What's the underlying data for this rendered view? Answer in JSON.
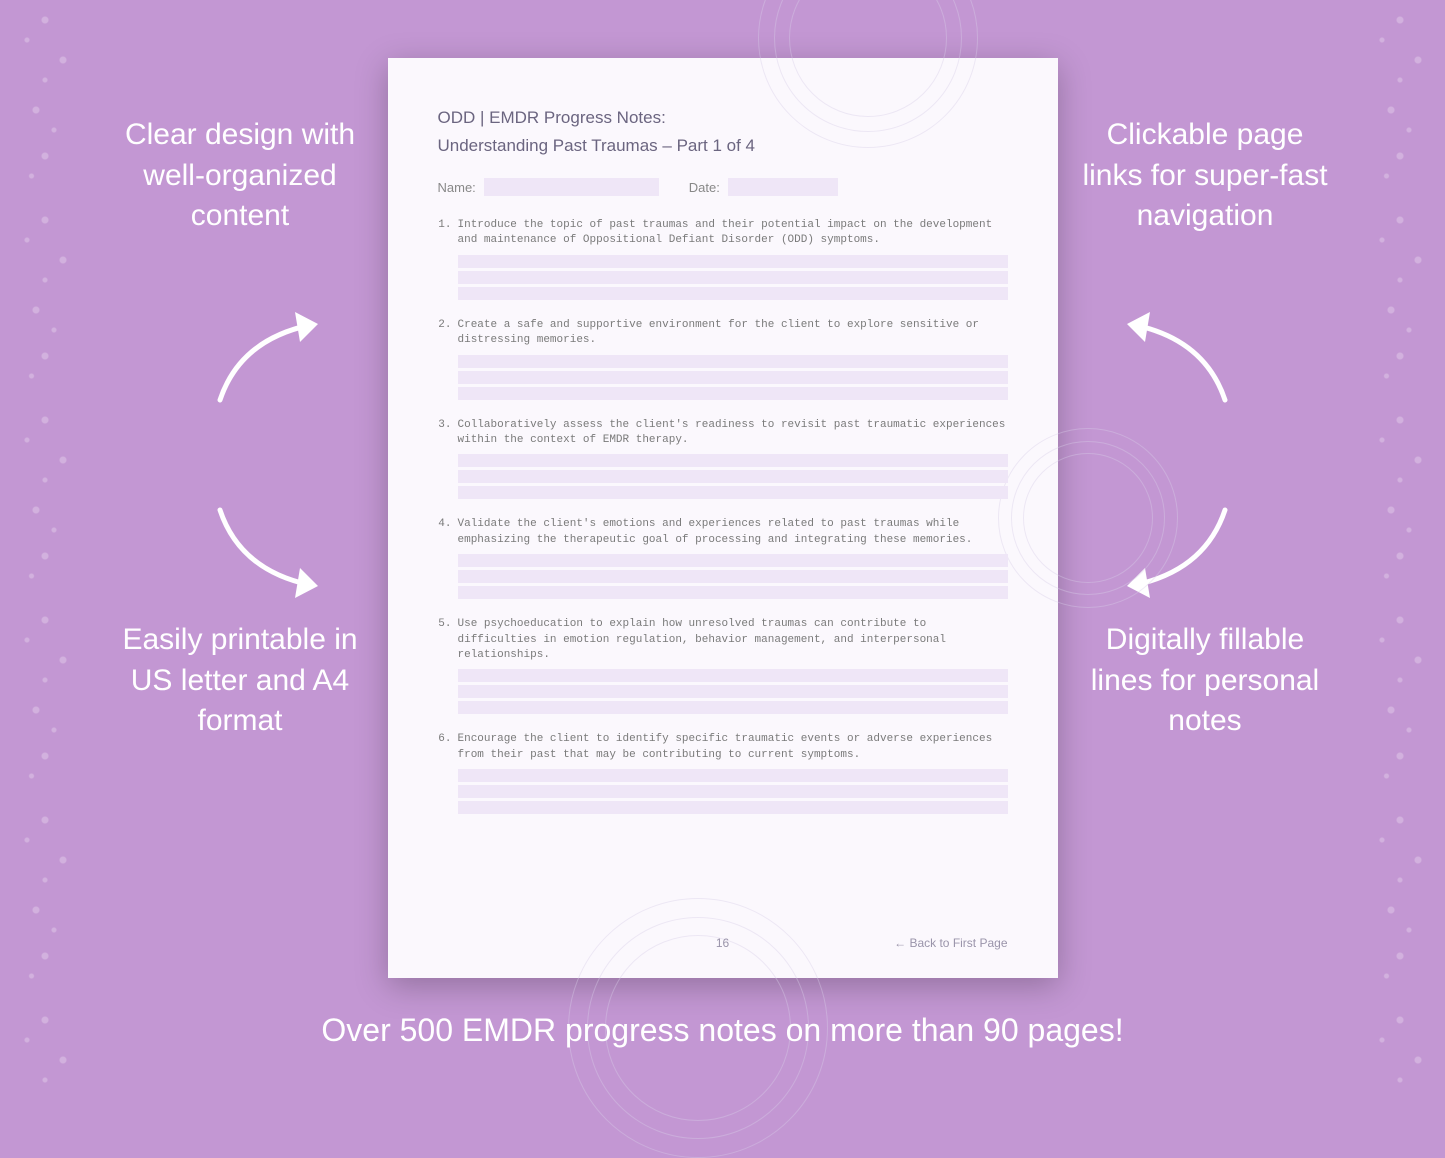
{
  "colors": {
    "background": "#c397d3",
    "page_bg": "#fbf8fd",
    "fill_line": "#efe6f7",
    "callout_text": "#ffffff",
    "doc_heading": "#6b6580",
    "item_text": "#7a7a7a",
    "footer_text": "#9a94aa",
    "mandala": "#d8cee8"
  },
  "typography": {
    "callout_fontsize": 30,
    "footer_fontsize": 32,
    "doc_title_fontsize": 17,
    "item_fontsize": 11,
    "item_font": "Courier New"
  },
  "callouts": {
    "top_left": "Clear design with well-organized content",
    "top_right": "Clickable page links for super-fast navigation",
    "bottom_left": "Easily printable in US letter and A4 format",
    "bottom_right": "Digitally fillable lines for personal notes"
  },
  "footer": "Over 500 EMDR progress notes on more than 90 pages!",
  "document": {
    "title": "ODD | EMDR Progress Notes:",
    "subtitle": "Understanding Past Traumas – Part 1 of 4",
    "name_label": "Name:",
    "date_label": "Date:",
    "page_number": "16",
    "back_link": "← Back to First Page",
    "items": [
      {
        "num": "1.",
        "text": "Introduce the topic of past traumas and their potential impact on the development and maintenance of Oppositional Defiant Disorder (ODD) symptoms."
      },
      {
        "num": "2.",
        "text": "Create a safe and supportive environment for the client to explore sensitive or distressing memories."
      },
      {
        "num": "3.",
        "text": "Collaboratively assess the client's readiness to revisit past traumatic experiences within the context of EMDR therapy."
      },
      {
        "num": "4.",
        "text": "Validate the client's emotions and experiences related to past traumas while emphasizing the therapeutic goal of processing and integrating these memories."
      },
      {
        "num": "5.",
        "text": "Use psychoeducation to explain how unresolved traumas can contribute to difficulties in emotion regulation, behavior management, and interpersonal relationships."
      },
      {
        "num": "6.",
        "text": "Encourage the client to identify specific traumatic events or adverse experiences from their past that may be contributing to current symptoms."
      }
    ],
    "lines_per_item": 3
  }
}
